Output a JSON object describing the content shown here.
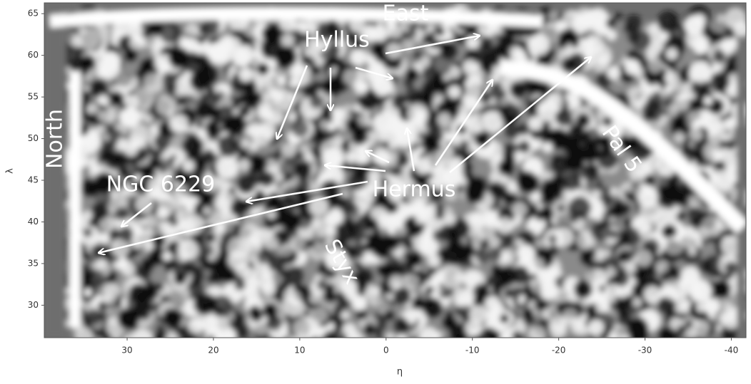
{
  "chart_data": {
    "type": "image",
    "xlabel": "η",
    "ylabel": "λ",
    "xlim": [
      39.6,
      -41.7
    ],
    "ylim": [
      26.1,
      66.3
    ],
    "xticks": [
      30,
      20,
      10,
      0,
      -10,
      -20,
      -30,
      -40
    ],
    "yticks": [
      30,
      35,
      40,
      45,
      50,
      55,
      60,
      65
    ],
    "annotations": [
      "East",
      "Hyllus",
      "North",
      "NGC 6229",
      "Hermus",
      "Styx",
      "Pal 5"
    ]
  }
}
